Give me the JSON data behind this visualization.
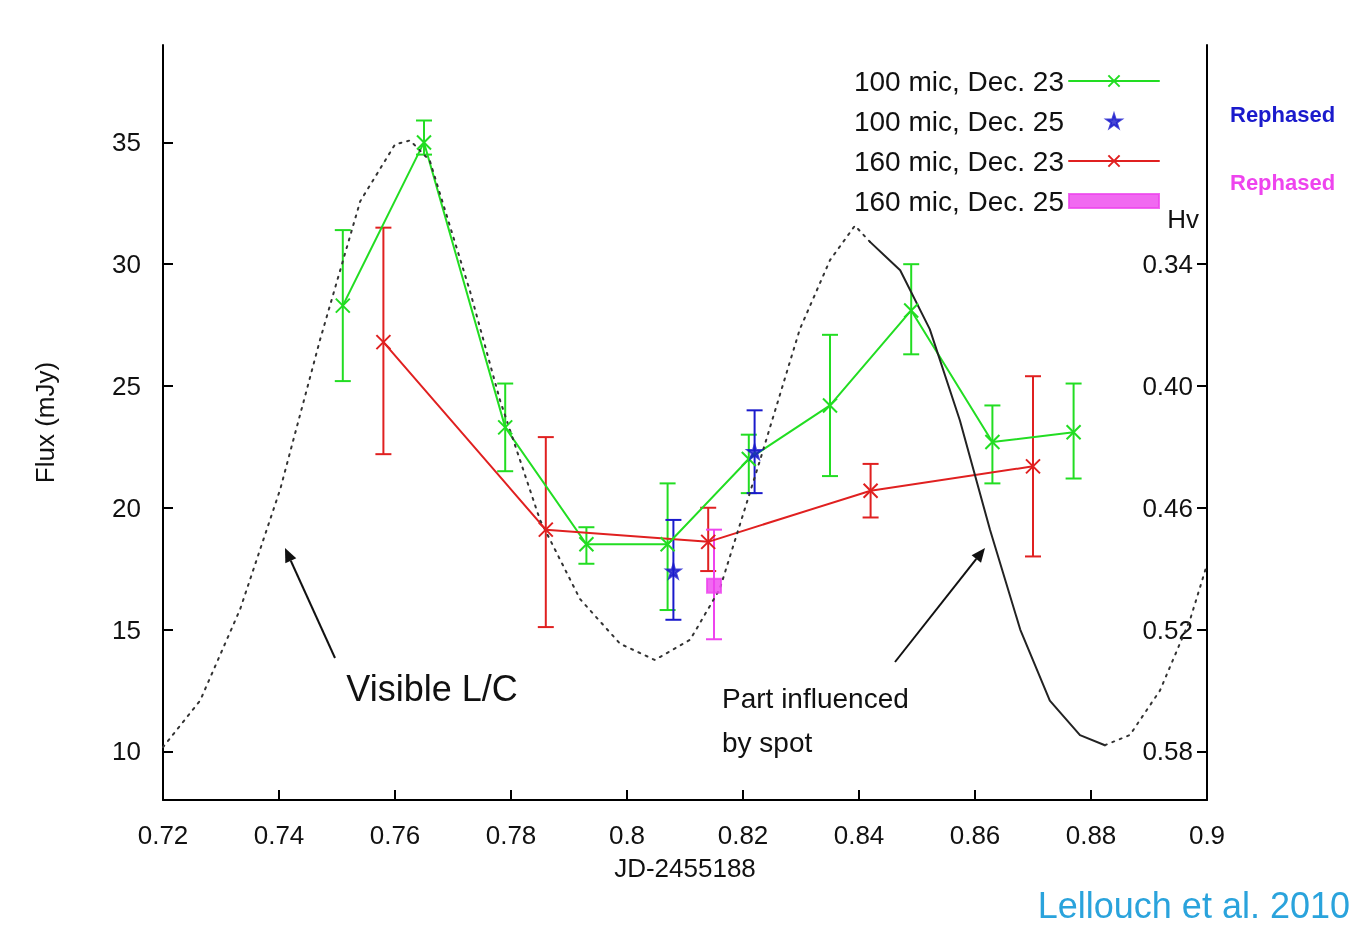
{
  "chart_data": {
    "type": "line",
    "xlabel": "JD-2455188",
    "ylabel": "Flux (mJy)",
    "y2label": "Hv",
    "xlim": [
      0.72,
      0.9
    ],
    "xticks": [
      0.72,
      0.74,
      0.76,
      0.78,
      0.8,
      0.82,
      0.84,
      0.86,
      0.88,
      0.9
    ],
    "ylim": [
      8,
      39
    ],
    "yticks": [
      10,
      15,
      20,
      25,
      30,
      35
    ],
    "y2lim": [
      0.604,
      0.232
    ],
    "y2ticks": [
      {
        "value": 0.34,
        "label": "0.34"
      },
      {
        "value": 0.4,
        "label": "0.40"
      },
      {
        "value": 0.46,
        "label": "0.46"
      },
      {
        "value": 0.52,
        "label": "0.52"
      },
      {
        "value": 0.58,
        "label": "0.58"
      }
    ],
    "grid": false,
    "legend": "top right",
    "annotations": [
      "Visible L/C",
      "Part influenced\nby spot",
      "Rephased",
      "Rephased",
      "Lellouch et al. 2010"
    ],
    "series": [
      {
        "name": "100 mic, Dec. 23",
        "color": "#22dd22",
        "marker": "cross",
        "x": [
          0.751,
          0.765,
          0.779,
          0.793,
          0.807,
          0.821,
          0.835,
          0.849,
          0.863,
          0.877
        ],
        "values": [
          28.3,
          35.0,
          23.3,
          18.5,
          18.5,
          22.0,
          24.2,
          28.1,
          22.7,
          23.1
        ],
        "errors": [
          [
            25.2,
            31.4
          ],
          [
            34.5,
            35.9
          ],
          [
            21.5,
            25.1
          ],
          [
            17.7,
            19.2
          ],
          [
            15.8,
            21.0
          ],
          [
            20.6,
            23.0
          ],
          [
            21.3,
            27.1
          ],
          [
            26.3,
            30.0
          ],
          [
            21.0,
            24.2
          ],
          [
            21.2,
            25.1
          ]
        ]
      },
      {
        "name": "100 mic, Dec. 25",
        "type": "scatter",
        "color": "#1a1acc",
        "marker": "star",
        "x": [
          0.808,
          0.822
        ],
        "values": [
          17.4,
          22.3
        ],
        "errors": [
          [
            15.4,
            19.5
          ],
          [
            20.6,
            24.0
          ]
        ]
      },
      {
        "name": "160 mic, Dec. 23",
        "color": "#e02020",
        "marker": "cross",
        "x": [
          0.758,
          0.786,
          0.814,
          0.842,
          0.87
        ],
        "values": [
          26.8,
          19.1,
          18.6,
          20.7,
          21.7
        ],
        "errors": [
          [
            22.2,
            31.5
          ],
          [
            15.1,
            22.9
          ],
          [
            17.4,
            20.0
          ],
          [
            19.6,
            21.8
          ],
          [
            18.0,
            25.4
          ]
        ]
      },
      {
        "name": "160 mic, Dec. 25",
        "type": "scatter",
        "color": "#ee44ee",
        "marker": "square",
        "x": [
          0.815
        ],
        "values": [
          16.8
        ],
        "errors": [
          [
            14.6,
            19.1
          ]
        ]
      },
      {
        "type": "line",
        "axis": "y2",
        "color": "#333333",
        "marker": "none",
        "line_style": "dotted",
        "x": [
          0.72,
          0.7264,
          0.7333,
          0.7402,
          0.7471,
          0.754,
          0.76,
          0.7626,
          0.766,
          0.7729,
          0.7781,
          0.785,
          0.7919,
          0.7988,
          0.8048,
          0.8109,
          0.816,
          0.823,
          0.8298,
          0.835,
          0.8393,
          0.8419
        ],
        "values": [
          0.578,
          0.555,
          0.51,
          0.451,
          0.377,
          0.309,
          0.281,
          0.279,
          0.289,
          0.353,
          0.407,
          0.466,
          0.505,
          0.527,
          0.535,
          0.525,
          0.5,
          0.436,
          0.372,
          0.338,
          0.321,
          0.329
        ]
      },
      {
        "axis": "y2",
        "color": "#222222",
        "marker": "none",
        "line_style": "solid",
        "x": [
          0.8419,
          0.8471,
          0.8522,
          0.8574,
          0.8626,
          0.8678,
          0.8729,
          0.8781,
          0.8824
        ],
        "values": [
          0.329,
          0.343,
          0.372,
          0.417,
          0.471,
          0.52,
          0.555,
          0.572,
          0.577
        ]
      },
      {
        "type": "line",
        "axis": "y2",
        "color": "#333333",
        "marker": "none",
        "line_style": "dotted",
        "x": [
          0.8824,
          0.8867,
          0.8919,
          0.8971,
          0.9
        ],
        "values": [
          0.577,
          0.572,
          0.55,
          0.515,
          0.488
        ]
      }
    ]
  }
}
